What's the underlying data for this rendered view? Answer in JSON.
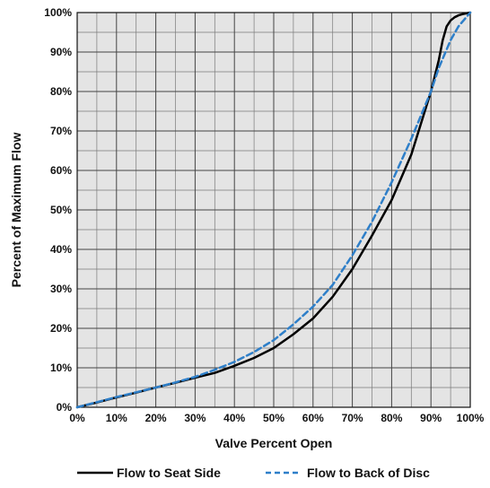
{
  "chart_data": {
    "type": "line",
    "title": "",
    "xlabel": "Valve Percent Open",
    "ylabel": "Percent of Maximum Flow",
    "xlim": [
      0,
      100
    ],
    "ylim": [
      0,
      100
    ],
    "x_ticks": [
      "0%",
      "10%",
      "20%",
      "30%",
      "40%",
      "50%",
      "60%",
      "70%",
      "80%",
      "90%",
      "100%"
    ],
    "y_ticks": [
      "0%",
      "10%",
      "20%",
      "30%",
      "40%",
      "50%",
      "60%",
      "70%",
      "80%",
      "90%",
      "100%"
    ],
    "grid": true,
    "minor_grid_step": 5,
    "legend_position": "bottom",
    "series": [
      {
        "name": "Flow to Seat Side",
        "color": "#000000",
        "style": "solid",
        "x": [
          0,
          5,
          10,
          15,
          20,
          25,
          30,
          35,
          40,
          45,
          50,
          55,
          60,
          65,
          70,
          75,
          80,
          85,
          90,
          92,
          93,
          94,
          95,
          96,
          97,
          98,
          99,
          100
        ],
        "y": [
          0,
          1.2,
          2.5,
          3.7,
          5,
          6.2,
          7.5,
          8.7,
          10.5,
          12.5,
          15,
          18.5,
          22.5,
          28,
          35,
          43.5,
          52.5,
          64,
          80,
          88,
          93,
          96.5,
          98,
          98.8,
          99.3,
          99.6,
          99.8,
          100
        ]
      },
      {
        "name": "Flow to Back of Disc",
        "color": "#2e7fc9",
        "style": "dashed",
        "x": [
          0,
          5,
          10,
          15,
          20,
          25,
          30,
          35,
          40,
          45,
          50,
          55,
          60,
          65,
          70,
          75,
          80,
          85,
          90,
          92,
          95,
          97,
          100
        ],
        "y": [
          0,
          1.3,
          2.6,
          3.8,
          5,
          6.3,
          7.7,
          9.5,
          11.5,
          14,
          17,
          21,
          25.5,
          31,
          38.5,
          47,
          57,
          68,
          80,
          86,
          93,
          96.5,
          100
        ]
      }
    ]
  }
}
